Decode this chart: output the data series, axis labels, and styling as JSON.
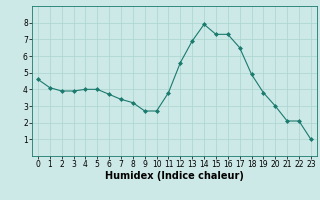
{
  "x": [
    0,
    1,
    2,
    3,
    4,
    5,
    6,
    7,
    8,
    9,
    10,
    11,
    12,
    13,
    14,
    15,
    16,
    17,
    18,
    19,
    20,
    21,
    22,
    23
  ],
  "y": [
    4.6,
    4.1,
    3.9,
    3.9,
    4.0,
    4.0,
    3.7,
    3.4,
    3.2,
    2.7,
    2.7,
    3.8,
    5.6,
    6.9,
    7.9,
    7.3,
    7.3,
    6.5,
    4.9,
    3.8,
    3.0,
    2.1,
    2.1,
    1.0
  ],
  "line_color": "#1a7a6e",
  "marker": "D",
  "marker_size": 2.0,
  "bg_color": "#cce9e7",
  "grid_color": "#aad4d0",
  "xlabel": "Humidex (Indice chaleur)",
  "xlim": [
    -0.5,
    23.5
  ],
  "ylim": [
    0,
    9
  ],
  "yticks": [
    1,
    2,
    3,
    4,
    5,
    6,
    7,
    8
  ],
  "xticks": [
    0,
    1,
    2,
    3,
    4,
    5,
    6,
    7,
    8,
    9,
    10,
    11,
    12,
    13,
    14,
    15,
    16,
    17,
    18,
    19,
    20,
    21,
    22,
    23
  ],
  "tick_fontsize": 5.5,
  "xlabel_fontsize": 7.0
}
